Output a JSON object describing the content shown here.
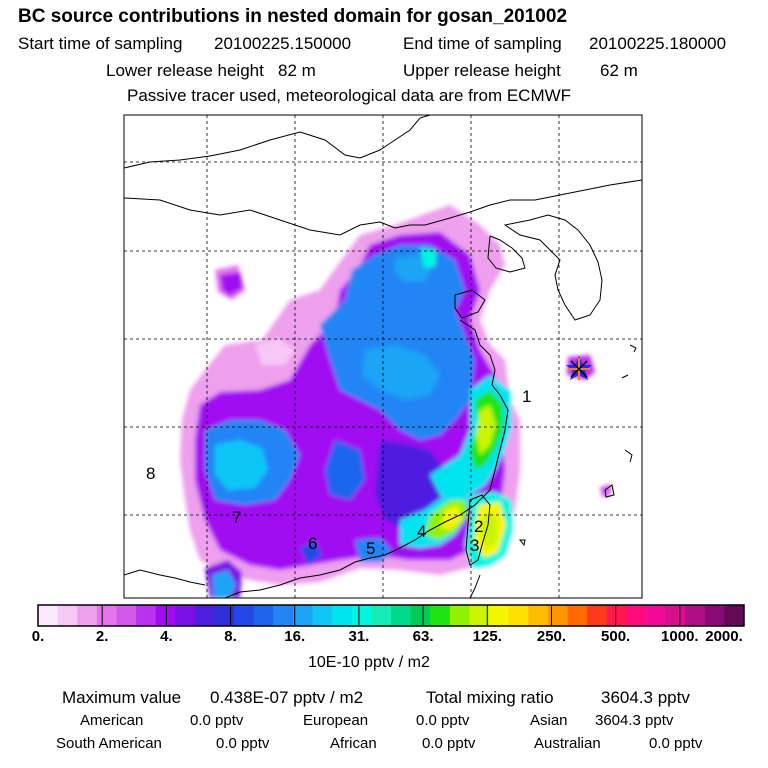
{
  "header": {
    "title": "BC  source contributions in nested domain for gosan_201002",
    "start_label": "Start time of sampling",
    "start_value": "20100225.150000",
    "end_label": "End time of sampling",
    "end_value": "20100225.180000",
    "lower_label": "Lower release height",
    "lower_value": "82 m",
    "upper_label": "Upper release height",
    "upper_value": "62 m",
    "tracer_note": "Passive tracer used, meteorological data are from ECMWF"
  },
  "map": {
    "region_labels": [
      "1",
      "2",
      "3",
      "4",
      "5",
      "6",
      "7",
      "8"
    ],
    "receptor_icon": "star-marker-icon"
  },
  "colorbar": {
    "tick_labels": [
      "0.",
      "2.",
      "4.",
      "8.",
      "16.",
      "31.",
      "63.",
      "125.",
      "250.",
      "500.",
      "1000.",
      "2000."
    ],
    "unit": "10E-10 pptv / m2",
    "colors": [
      "#fde9fd",
      "#f6c8f6",
      "#ee9fee",
      "#e574ef",
      "#d35ae8",
      "#bb32ee",
      "#a00bf2",
      "#7a12e6",
      "#4d1de0",
      "#2f2ed9",
      "#2448e6",
      "#1e65ee",
      "#2085f5",
      "#1ca4f7",
      "#10c6f7",
      "#00e4f0",
      "#00f5e0",
      "#14ecb4",
      "#00d98a",
      "#00cc55",
      "#1ee414",
      "#8ef200",
      "#c9f500",
      "#f5f500",
      "#ffdf00",
      "#ffbc00",
      "#ff9500",
      "#ff6a00",
      "#ff3a1a",
      "#ff1a4c",
      "#ff0a7a",
      "#f00a9a",
      "#d4108c",
      "#b00e84",
      "#880a74",
      "#600a58"
    ]
  },
  "stats": {
    "max_label": "Maximum value",
    "max_value": "0.438E-07 pptv / m2",
    "total_label": "Total mixing ratio",
    "total_value": "3604.3 pptv"
  },
  "regions": [
    {
      "name": "American",
      "value": "0.0 pptv"
    },
    {
      "name": "European",
      "value": "0.0 pptv"
    },
    {
      "name": "Asian",
      "value": "3604.3 pptv"
    },
    {
      "name": "South American",
      "value": "0.0 pptv"
    },
    {
      "name": "African",
      "value": "0.0 pptv"
    },
    {
      "name": "Australian",
      "value": "0.0 pptv"
    }
  ]
}
